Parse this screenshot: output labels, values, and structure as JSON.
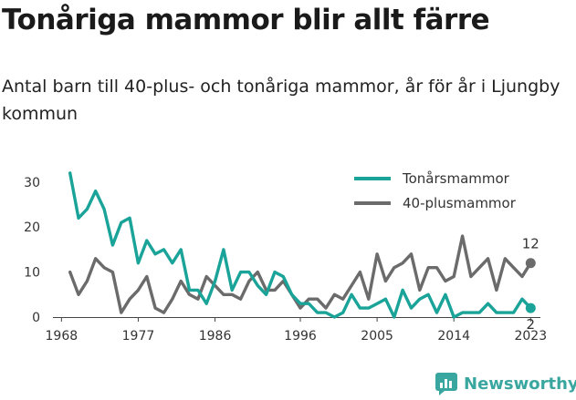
{
  "header": {
    "title": "Tonåriga mammor blir allt färre",
    "subtitle": "Antal barn till 40-plus- och tonåriga mammor, år för år i Ljungby kommun"
  },
  "brand": {
    "name": "Newsworthy",
    "icon": "newsworthy-logo-icon",
    "color": "#3aa6a0"
  },
  "chart_data": {
    "type": "line",
    "title": "Tonåriga mammor blir allt färre",
    "subtitle": "Antal barn till 40-plus- och tonåriga mammor, år för år i Ljungby kommun",
    "xlabel": "",
    "ylabel": "",
    "xlim": [
      1967,
      2025
    ],
    "ylim": [
      0,
      33
    ],
    "xticks": [
      1968,
      1977,
      1986,
      1996,
      2005,
      2014,
      2023
    ],
    "yticks": [
      0,
      10,
      20,
      30
    ],
    "grid": false,
    "legend": "top-right",
    "x": [
      1969,
      1970,
      1971,
      1972,
      1973,
      1974,
      1975,
      1976,
      1977,
      1978,
      1979,
      1980,
      1981,
      1982,
      1983,
      1984,
      1985,
      1986,
      1987,
      1988,
      1989,
      1990,
      1991,
      1992,
      1993,
      1994,
      1995,
      1996,
      1997,
      1998,
      1999,
      2000,
      2001,
      2002,
      2003,
      2004,
      2005,
      2006,
      2007,
      2008,
      2009,
      2010,
      2011,
      2012,
      2013,
      2014,
      2015,
      2016,
      2017,
      2018,
      2019,
      2020,
      2021,
      2022,
      2023
    ],
    "series": [
      {
        "name": "Tonårsmammor",
        "color": "#1aa398",
        "values": [
          32,
          22,
          24,
          28,
          24,
          16,
          21,
          22,
          12,
          17,
          14,
          15,
          12,
          15,
          6,
          6,
          3,
          8,
          15,
          6,
          10,
          10,
          7,
          5,
          10,
          9,
          5,
          3,
          3,
          1,
          1,
          0,
          1,
          5,
          2,
          2,
          3,
          4,
          0,
          6,
          2,
          4,
          5,
          1,
          5,
          0,
          1,
          1,
          1,
          3,
          1,
          1,
          1,
          4,
          2
        ]
      },
      {
        "name": "40-plusmammor",
        "color": "#6b6b6b",
        "values": [
          10,
          5,
          8,
          13,
          11,
          10,
          1,
          4,
          6,
          9,
          2,
          1,
          4,
          8,
          5,
          4,
          9,
          7,
          5,
          5,
          4,
          8,
          10,
          6,
          6,
          8,
          5,
          2,
          4,
          4,
          2,
          5,
          4,
          7,
          10,
          4,
          14,
          8,
          11,
          12,
          14,
          6,
          11,
          11,
          8,
          9,
          18,
          9,
          11,
          13,
          6,
          13,
          11,
          9,
          12
        ]
      }
    ],
    "end_labels": [
      {
        "series": "40-plusmammor",
        "text": "12"
      },
      {
        "series": "Tonårsmammor",
        "text": "2"
      }
    ]
  }
}
